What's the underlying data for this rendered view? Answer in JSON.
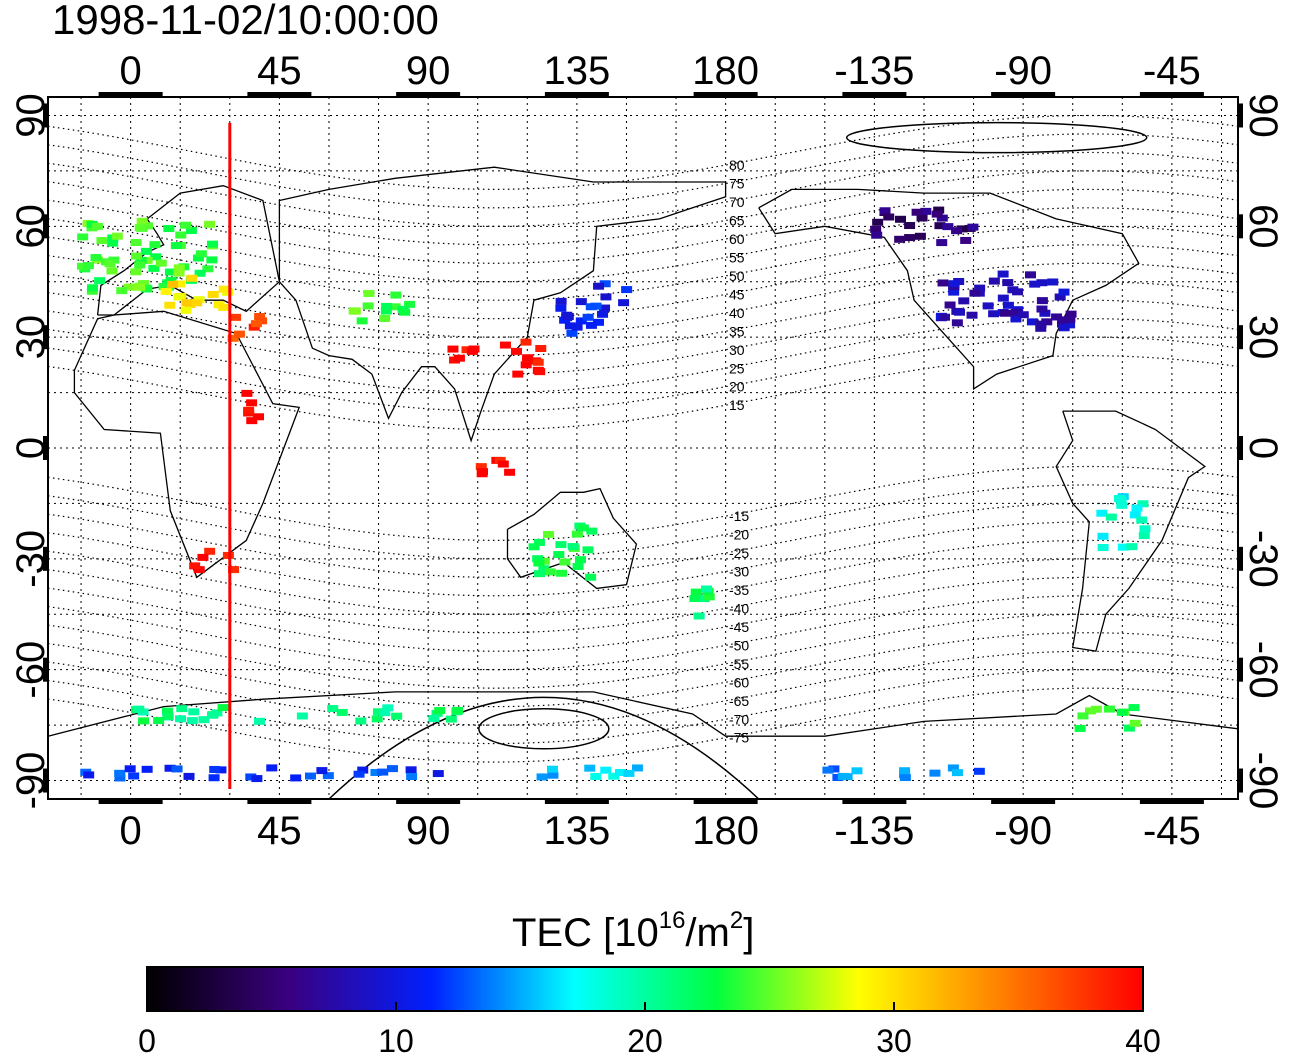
{
  "title": "1998-11-02/10:00:00",
  "map": {
    "lon_range": [
      -25,
      335
    ],
    "lat_range": [
      -95,
      95
    ],
    "x_ticks": [
      "0",
      "45",
      "90",
      "135",
      "180",
      "-135",
      "-90",
      "-45"
    ],
    "x_tick_lons": [
      0,
      45,
      90,
      135,
      180,
      225,
      270,
      315
    ],
    "y_ticks": [
      "90",
      "60",
      "30",
      "0",
      "-30",
      "-60",
      "-90"
    ],
    "y_tick_lats": [
      90,
      60,
      30,
      0,
      -30,
      -60,
      -90
    ],
    "marker_lon": 30,
    "marker_color": "#ff0000",
    "grid": "dotted"
  },
  "mlat_labels": [
    "80",
    "75",
    "70",
    "65",
    "60",
    "55",
    "50",
    "45",
    "40",
    "35",
    "30",
    "25",
    "20",
    "15",
    "-15",
    "-20",
    "-25",
    "-30",
    "-35",
    "-40",
    "-45",
    "-50",
    "-55",
    "-60",
    "-65",
    "-70",
    "-75"
  ],
  "mlat_values": [
    80,
    75,
    70,
    65,
    60,
    55,
    50,
    45,
    40,
    35,
    30,
    25,
    20,
    15,
    -15,
    -20,
    -25,
    -30,
    -35,
    -40,
    -45,
    -50,
    -55,
    -60,
    -65,
    -70,
    -75
  ],
  "colorbar": {
    "label_main": "TEC  [10",
    "label_sup1": "16",
    "label_mid": "/m",
    "label_sup2": "2",
    "label_end": "]",
    "ticks": [
      "0",
      "10",
      "20",
      "30",
      "40"
    ],
    "tick_values": [
      0,
      10,
      20,
      30,
      40
    ],
    "range": [
      0,
      40
    ],
    "colors": [
      "#000000",
      "#3a0080",
      "#0020ff",
      "#00ffff",
      "#00ff40",
      "#ffff00",
      "#ff8000",
      "#ff0000"
    ]
  },
  "tec_clusters": [
    {
      "lon": 5,
      "lat": 52,
      "w": 40,
      "h": 20,
      "tec": 24
    },
    {
      "lon": 20,
      "lat": 42,
      "w": 20,
      "h": 10,
      "tec": 30
    },
    {
      "lon": 35,
      "lat": 32,
      "w": 10,
      "h": 8,
      "tec": 37
    },
    {
      "lon": 75,
      "lat": 38,
      "w": 20,
      "h": 8,
      "tec": 24
    },
    {
      "lon": 140,
      "lat": 38,
      "w": 20,
      "h": 14,
      "tec": 11
    },
    {
      "lon": 120,
      "lat": 25,
      "w": 14,
      "h": 10,
      "tec": 40
    },
    {
      "lon": 100,
      "lat": 25,
      "w": 8,
      "h": 6,
      "tec": 40
    },
    {
      "lon": 38,
      "lat": 10,
      "w": 6,
      "h": 10,
      "tec": 40
    },
    {
      "lon": 25,
      "lat": -30,
      "w": 12,
      "h": 6,
      "tec": 40
    },
    {
      "lon": 110,
      "lat": -5,
      "w": 10,
      "h": 8,
      "tec": 40
    },
    {
      "lon": 130,
      "lat": -28,
      "w": 20,
      "h": 14,
      "tec": 23
    },
    {
      "lon": 172,
      "lat": -42,
      "w": 10,
      "h": 8,
      "tec": 22
    },
    {
      "lon": 265,
      "lat": 40,
      "w": 40,
      "h": 16,
      "tec": 8
    },
    {
      "lon": 240,
      "lat": 60,
      "w": 30,
      "h": 10,
      "tec": 5
    },
    {
      "lon": 300,
      "lat": -20,
      "w": 14,
      "h": 14,
      "tec": 18
    },
    {
      "lon": 295,
      "lat": -73,
      "w": 20,
      "h": 6,
      "tec": 24
    },
    {
      "lon": 40,
      "lat": -88,
      "w": 110,
      "h": 3,
      "tec": 12
    },
    {
      "lon": 140,
      "lat": -88,
      "w": 40,
      "h": 3,
      "tec": 16
    },
    {
      "lon": 235,
      "lat": -88,
      "w": 50,
      "h": 3,
      "tec": 14
    },
    {
      "lon": 50,
      "lat": -72,
      "w": 100,
      "h": 4,
      "tec": 21
    }
  ]
}
